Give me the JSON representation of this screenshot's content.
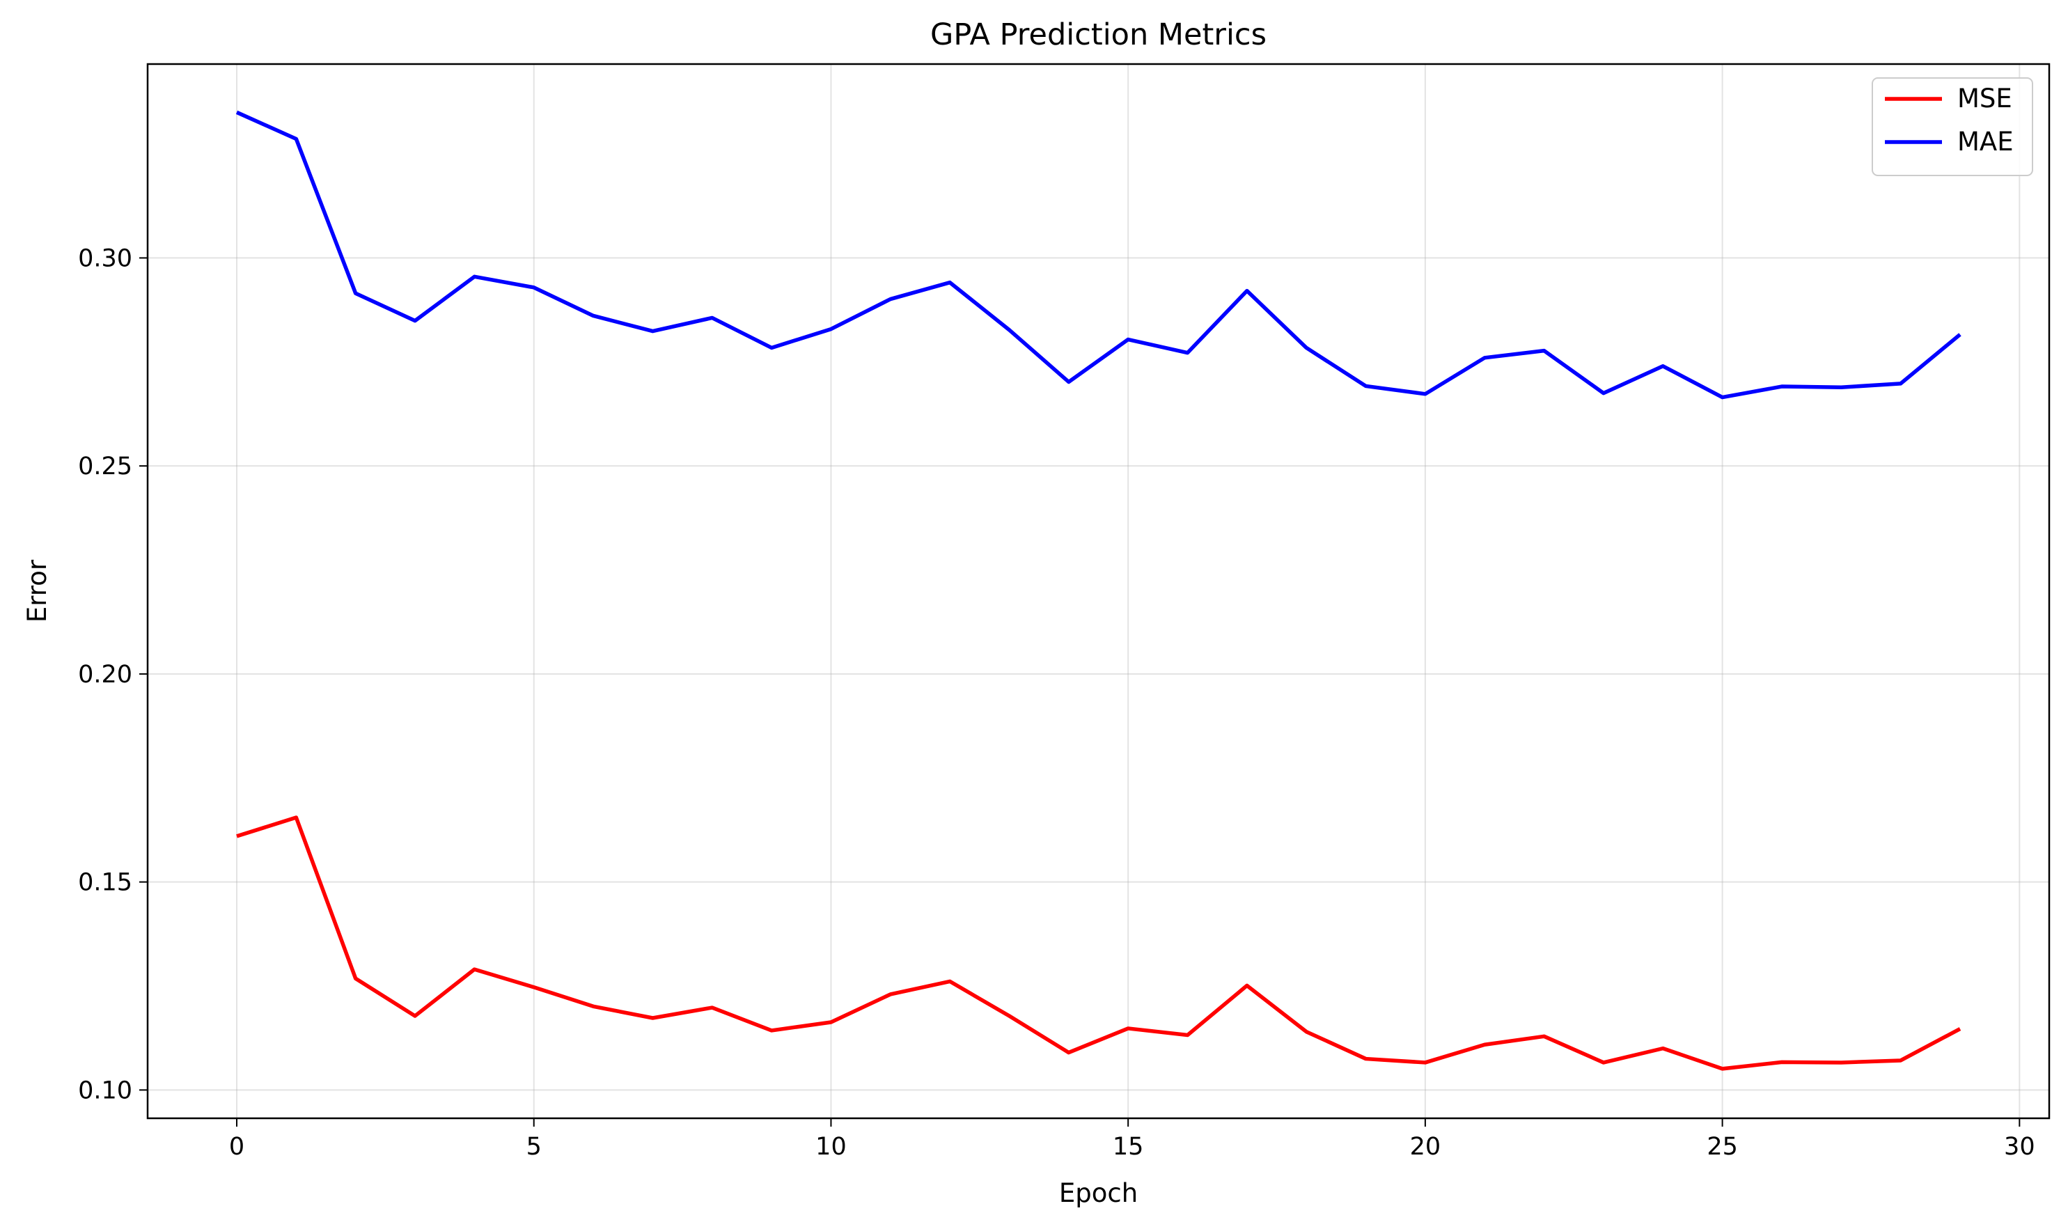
{
  "chart_data": {
    "type": "line",
    "title": "GPA Prediction Metrics",
    "xlabel": "Epoch",
    "ylabel": "Error",
    "xlim": [
      -1.5,
      30.5
    ],
    "ylim": [
      0.0932,
      0.3466
    ],
    "x_ticks": [
      0,
      5,
      10,
      15,
      20,
      25,
      30
    ],
    "x_tick_labels": [
      "0",
      "5",
      "10",
      "15",
      "20",
      "25",
      "30"
    ],
    "y_ticks": [
      0.1,
      0.15,
      0.2,
      0.25,
      0.3
    ],
    "y_tick_labels": [
      "0.10",
      "0.15",
      "0.20",
      "0.25",
      "0.30"
    ],
    "grid": true,
    "legend": "top-right",
    "x": [
      0,
      1,
      2,
      3,
      4,
      5,
      6,
      7,
      8,
      9,
      10,
      11,
      12,
      13,
      14,
      15,
      16,
      17,
      18,
      19,
      20,
      21,
      22,
      23,
      24,
      25,
      26,
      27,
      28,
      29
    ],
    "series": [
      {
        "name": "MSE",
        "color": "#ff0000",
        "values": [
          0.161,
          0.1655,
          0.1268,
          0.1178,
          0.129,
          0.1247,
          0.1201,
          0.1173,
          0.1198,
          0.1143,
          0.1163,
          0.123,
          0.1261,
          0.1178,
          0.109,
          0.1148,
          0.1132,
          0.1251,
          0.114,
          0.1075,
          0.1066,
          0.1109,
          0.1129,
          0.1066,
          0.11,
          0.1051,
          0.1067,
          0.1066,
          0.1071,
          0.1147
        ]
      },
      {
        "name": "MAE",
        "color": "#0000ff",
        "values": [
          0.335,
          0.3286,
          0.2915,
          0.2849,
          0.2955,
          0.2929,
          0.2861,
          0.2824,
          0.2856,
          0.2784,
          0.2829,
          0.2901,
          0.2941,
          0.2827,
          0.2702,
          0.2804,
          0.2772,
          0.2921,
          0.2784,
          0.2692,
          0.2673,
          0.276,
          0.2777,
          0.2675,
          0.274,
          0.2665,
          0.2691,
          0.2689,
          0.2698,
          0.2816
        ]
      }
    ]
  }
}
